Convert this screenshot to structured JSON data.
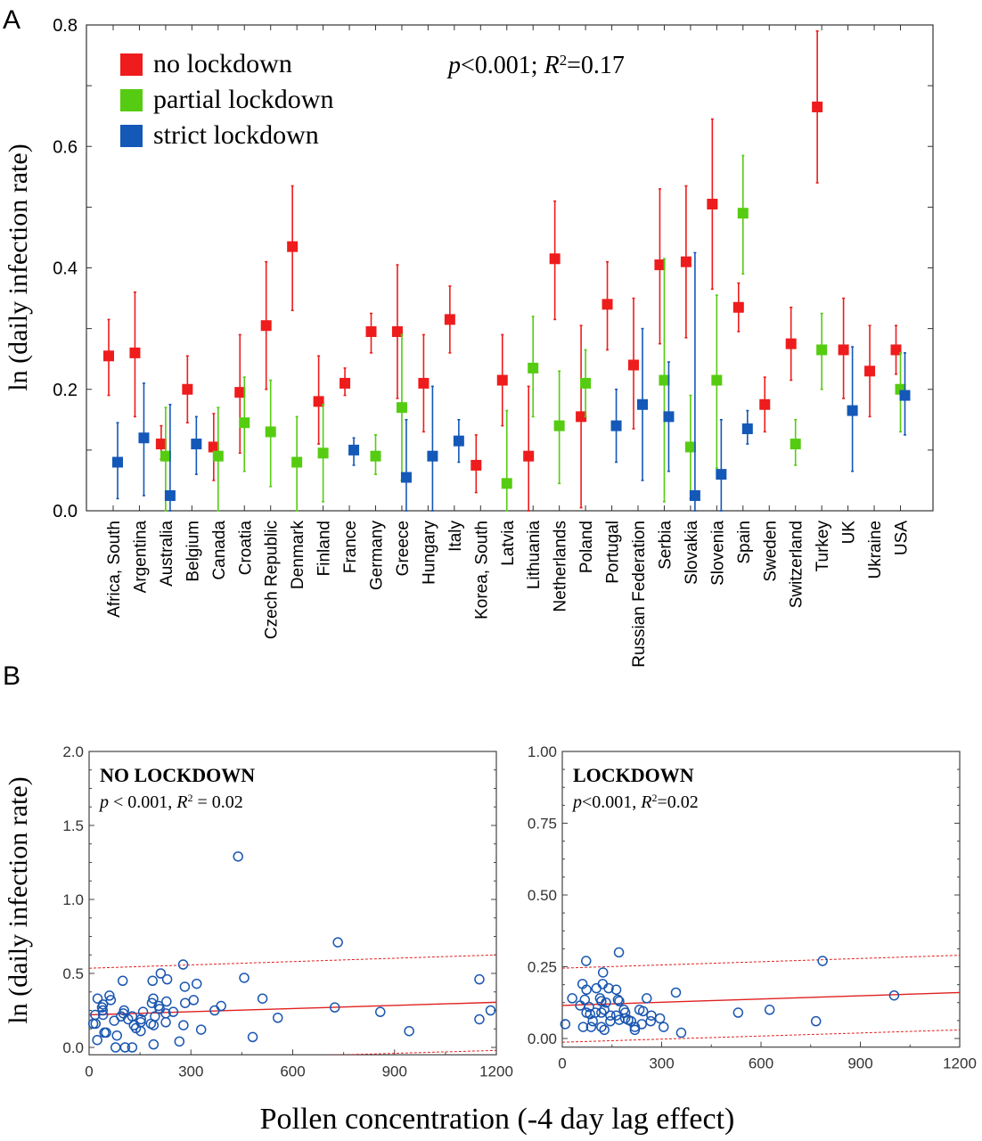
{
  "panels": {
    "a_label": "A",
    "b_label": "B"
  },
  "chart_data": [
    {
      "type": "scatter",
      "panel": "A",
      "ylabel": "ln (daily infection rate)",
      "ylim": [
        0,
        0.8
      ],
      "yticks": [
        "0.0",
        "0.2",
        "0.4",
        "0.6",
        "0.8"
      ],
      "annotation": {
        "p": "p",
        "p_rest": "<0.001; ",
        "r": "R",
        "sup": "2",
        "r_rest": "=0.17"
      },
      "legend_position": "top-left",
      "categories": [
        "Africa, South",
        "Argentina",
        "Australia",
        "Belgium",
        "Canada",
        "Croatia",
        "Czech Republic",
        "Denmark",
        "Finland",
        "France",
        "Germany",
        "Greece",
        "Hungary",
        "Italy",
        "Korea, South",
        "Latvia",
        "Lithuania",
        "Netherlands",
        "Poland",
        "Portugal",
        "Russian Federation",
        "Serbia",
        "Slovakia",
        "Slovenia",
        "Spain",
        "Sweden",
        "Switzerland",
        "Turkey",
        "UK",
        "Ukraine",
        "USA"
      ],
      "series": [
        {
          "name": "no lockdown",
          "color": "#ee1c1c",
          "values": [
            0.255,
            0.26,
            0.11,
            0.2,
            0.105,
            0.195,
            0.305,
            0.435,
            0.18,
            0.21,
            0.295,
            0.295,
            0.21,
            0.315,
            0.075,
            0.215,
            0.09,
            0.415,
            0.155,
            0.34,
            0.24,
            0.405,
            0.41,
            0.505,
            0.335,
            0.175,
            0.275,
            0.665,
            0.265,
            0.23,
            0.265
          ],
          "lower": [
            0.19,
            0.155,
            0.085,
            0.145,
            0.05,
            0.095,
            0.2,
            0.33,
            0.11,
            0.19,
            0.26,
            0.185,
            0.13,
            0.26,
            0.03,
            0.14,
            0,
            0.315,
            0.005,
            0.265,
            0.135,
            0.275,
            0.285,
            0.365,
            0.295,
            0.13,
            0.215,
            0.54,
            0.185,
            0.155,
            0.225
          ],
          "upper": [
            0.315,
            0.36,
            0.14,
            0.255,
            0.16,
            0.29,
            0.41,
            0.535,
            0.255,
            0.235,
            0.325,
            0.405,
            0.29,
            0.37,
            0.125,
            0.29,
            0.205,
            0.51,
            0.305,
            0.41,
            0.35,
            0.53,
            0.535,
            0.645,
            0.375,
            0.22,
            0.335,
            0.79,
            0.35,
            0.305,
            0.305
          ]
        },
        {
          "name": "partial lockdown",
          "color": "#55cc11",
          "values": [
            null,
            null,
            0.09,
            null,
            0.09,
            0.145,
            0.13,
            0.08,
            0.095,
            null,
            0.09,
            0.17,
            null,
            null,
            null,
            0.045,
            0.235,
            0.14,
            0.21,
            null,
            null,
            0.215,
            0.105,
            0.215,
            0.49,
            null,
            0.11,
            0.265,
            null,
            null,
            0.2
          ],
          "lower": [
            null,
            null,
            0,
            null,
            0,
            0.065,
            0.04,
            0,
            0.015,
            null,
            0.06,
            0.05,
            null,
            null,
            null,
            0,
            0.155,
            0.045,
            0.155,
            null,
            null,
            0.015,
            0.02,
            0.07,
            0.39,
            null,
            0.075,
            0.2,
            null,
            null,
            0.13
          ],
          "upper": [
            null,
            null,
            0.17,
            null,
            0.17,
            0.22,
            0.215,
            0.155,
            0.175,
            null,
            0.125,
            0.29,
            null,
            null,
            null,
            0.165,
            0.32,
            0.23,
            0.265,
            null,
            null,
            0.415,
            0.19,
            0.355,
            0.585,
            null,
            0.15,
            0.325,
            null,
            null,
            0.26
          ]
        },
        {
          "name": "strict lockdown",
          "color": "#1458b8",
          "values": [
            0.08,
            0.12,
            0.025,
            0.11,
            null,
            null,
            null,
            null,
            null,
            0.1,
            null,
            0.055,
            0.09,
            0.115,
            null,
            null,
            null,
            null,
            null,
            0.14,
            0.175,
            0.155,
            0.025,
            0.06,
            0.135,
            null,
            null,
            null,
            0.165,
            null,
            0.19
          ],
          "lower": [
            0.02,
            0.025,
            0,
            0.06,
            null,
            null,
            null,
            null,
            null,
            0.075,
            null,
            0,
            0,
            0.08,
            null,
            null,
            null,
            null,
            null,
            0.08,
            0.05,
            0.065,
            0,
            0,
            0.11,
            null,
            null,
            null,
            0.065,
            null,
            0.125
          ],
          "upper": [
            0.145,
            0.21,
            0.175,
            0.155,
            null,
            null,
            null,
            null,
            null,
            0.12,
            null,
            0.15,
            0.205,
            0.15,
            null,
            null,
            null,
            null,
            null,
            0.2,
            0.3,
            0.245,
            0.425,
            0.15,
            0.165,
            null,
            null,
            null,
            0.27,
            null,
            0.26
          ]
        }
      ]
    },
    {
      "type": "scatter",
      "panel": "B-left",
      "title": "NO LOCKDOWN",
      "annotation": {
        "p": "p",
        "p_rest": " < 0.001, ",
        "r": "R",
        "sup": "2",
        "r_rest": " = 0.02"
      },
      "xlim": [
        0,
        1200
      ],
      "ylim": [
        -0.05,
        2.0
      ],
      "xticks": [
        "0",
        "300",
        "600",
        "900",
        "1200"
      ],
      "yticks": [
        "0.0",
        "0.5",
        "1.0",
        "1.5",
        "2.0"
      ],
      "ylabel": "ln (daily infection rate)",
      "xlabel": "Pollen concentration (-4 day lag effect)",
      "fit": {
        "intercept": 0.22,
        "slope": 7.08e-05,
        "ci_upper": [
          0.535,
          0.625
        ],
        "ci_lower": [
          -0.1,
          -0.02
        ]
      },
      "points": [
        [
          439,
          1.29
        ],
        [
          733,
          0.71
        ],
        [
          277,
          0.56
        ],
        [
          457,
          0.47
        ],
        [
          1150,
          0.46
        ],
        [
          211,
          0.5
        ],
        [
          99,
          0.45
        ],
        [
          187,
          0.45
        ],
        [
          230,
          0.46
        ],
        [
          282,
          0.41
        ],
        [
          317,
          0.43
        ],
        [
          511,
          0.33
        ],
        [
          308,
          0.32
        ],
        [
          25,
          0.33
        ],
        [
          60,
          0.35
        ],
        [
          64,
          0.32
        ],
        [
          41,
          0.29
        ],
        [
          38,
          0.27
        ],
        [
          40,
          0.25
        ],
        [
          189,
          0.33
        ],
        [
          185,
          0.3
        ],
        [
          228,
          0.31
        ],
        [
          205,
          0.28
        ],
        [
          208,
          0.26
        ],
        [
          283,
          0.3
        ],
        [
          370,
          0.25
        ],
        [
          389,
          0.28
        ],
        [
          724,
          0.27
        ],
        [
          858,
          0.24
        ],
        [
          1183,
          0.25
        ],
        [
          1150,
          0.19
        ],
        [
          556,
          0.2
        ],
        [
          943,
          0.11
        ],
        [
          482,
          0.07
        ],
        [
          330,
          0.12
        ],
        [
          278,
          0.15
        ],
        [
          266,
          0.04
        ],
        [
          190,
          0.02
        ],
        [
          78,
          0.0
        ],
        [
          106,
          0.0
        ],
        [
          127,
          0.0
        ],
        [
          24,
          0.05
        ],
        [
          82,
          0.08
        ],
        [
          45,
          0.1
        ],
        [
          50,
          0.1
        ],
        [
          74,
          0.18
        ],
        [
          18,
          0.22
        ],
        [
          41,
          0.22
        ],
        [
          12,
          0.16
        ],
        [
          19,
          0.16
        ],
        [
          94,
          0.21
        ],
        [
          103,
          0.25
        ],
        [
          101,
          0.23
        ],
        [
          115,
          0.19
        ],
        [
          127,
          0.21
        ],
        [
          132,
          0.15
        ],
        [
          138,
          0.13
        ],
        [
          152,
          0.11
        ],
        [
          152,
          0.17
        ],
        [
          153,
          0.19
        ],
        [
          159,
          0.24
        ],
        [
          182,
          0.16
        ],
        [
          190,
          0.15
        ],
        [
          194,
          0.21
        ],
        [
          226,
          0.23
        ],
        [
          248,
          0.24
        ],
        [
          226,
          0.17
        ]
      ]
    },
    {
      "type": "scatter",
      "panel": "B-right",
      "title": "LOCKDOWN",
      "annotation": {
        "p": "p",
        "p_rest": "<0.001, ",
        "r": "R",
        "sup": "2",
        "r_rest": "=0.02"
      },
      "xlim": [
        0,
        1200
      ],
      "ylim": [
        -0.03,
        1.0
      ],
      "xticks": [
        "0",
        "300",
        "600",
        "900",
        "1200"
      ],
      "yticks": [
        "0.00",
        "0.25",
        "0.50",
        "0.75",
        "1.00"
      ],
      "fit": {
        "intercept": 0.115,
        "slope": 3.75e-05,
        "ci_upper": [
          0.245,
          0.29
        ],
        "ci_lower": [
          -0.013,
          0.03
        ]
      },
      "points": [
        [
          171,
          0.3
        ],
        [
          72,
          0.27
        ],
        [
          786,
          0.27
        ],
        [
          1002,
          0.15
        ],
        [
          343,
          0.16
        ],
        [
          626,
          0.1
        ],
        [
          531,
          0.09
        ],
        [
          766,
          0.06
        ],
        [
          359,
          0.02
        ],
        [
          9,
          0.05
        ],
        [
          30,
          0.14
        ],
        [
          255,
          0.14
        ],
        [
          123,
          0.23
        ],
        [
          61,
          0.19
        ],
        [
          73,
          0.17
        ],
        [
          103,
          0.175
        ],
        [
          122,
          0.19
        ],
        [
          140,
          0.175
        ],
        [
          163,
          0.17
        ],
        [
          68,
          0.135
        ],
        [
          54,
          0.115
        ],
        [
          81,
          0.11
        ],
        [
          114,
          0.14
        ],
        [
          118,
          0.13
        ],
        [
          132,
          0.125
        ],
        [
          168,
          0.135
        ],
        [
          172,
          0.13
        ],
        [
          186,
          0.1
        ],
        [
          190,
          0.09
        ],
        [
          190,
          0.07
        ],
        [
          199,
          0.065
        ],
        [
          208,
          0.06
        ],
        [
          233,
          0.1
        ],
        [
          244,
          0.095
        ],
        [
          269,
          0.08
        ],
        [
          267,
          0.06
        ],
        [
          295,
          0.07
        ],
        [
          73,
          0.09
        ],
        [
          84,
          0.085
        ],
        [
          100,
          0.09
        ],
        [
          118,
          0.09
        ],
        [
          127,
          0.1
        ],
        [
          145,
          0.08
        ],
        [
          163,
          0.08
        ],
        [
          172,
          0.065
        ],
        [
          145,
          0.06
        ],
        [
          92,
          0.06
        ],
        [
          63,
          0.04
        ],
        [
          87,
          0.04
        ],
        [
          118,
          0.04
        ],
        [
          127,
          0.03
        ],
        [
          219,
          0.04
        ],
        [
          219,
          0.03
        ],
        [
          240,
          0.05
        ],
        [
          306,
          0.04
        ]
      ]
    }
  ]
}
